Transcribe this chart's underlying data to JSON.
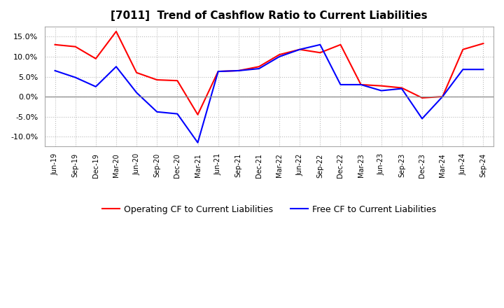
{
  "title": "[7011]  Trend of Cashflow Ratio to Current Liabilities",
  "x_labels": [
    "Jun-19",
    "Sep-19",
    "Dec-19",
    "Mar-20",
    "Jun-20",
    "Sep-20",
    "Dec-20",
    "Mar-21",
    "Jun-21",
    "Sep-21",
    "Dec-21",
    "Mar-22",
    "Jun-22",
    "Sep-22",
    "Dec-22",
    "Mar-23",
    "Jun-23",
    "Sep-23",
    "Dec-23",
    "Mar-24",
    "Jun-24",
    "Sep-24"
  ],
  "operating_cf": [
    13.0,
    12.5,
    9.5,
    16.3,
    6.0,
    4.2,
    4.0,
    -4.5,
    6.3,
    6.5,
    7.5,
    10.5,
    11.8,
    11.0,
    13.0,
    3.0,
    2.7,
    2.2,
    -0.3,
    0.0,
    11.8,
    13.3
  ],
  "free_cf": [
    6.5,
    4.8,
    2.5,
    7.5,
    1.0,
    -3.8,
    -4.3,
    -11.5,
    6.3,
    6.5,
    7.0,
    10.0,
    11.8,
    13.0,
    3.0,
    3.0,
    1.5,
    2.0,
    -5.5,
    0.0,
    6.8,
    6.8
  ],
  "operating_color": "#FF0000",
  "free_color": "#0000FF",
  "ylim": [
    -12.5,
    17.5
  ],
  "yticks": [
    -10,
    -5,
    0,
    5,
    10,
    15
  ],
  "background_color": "#FFFFFF",
  "plot_bg_color": "#FFFFFF",
  "grid_color": "#BBBBBB",
  "legend_op": "Operating CF to Current Liabilities",
  "legend_free": "Free CF to Current Liabilities"
}
